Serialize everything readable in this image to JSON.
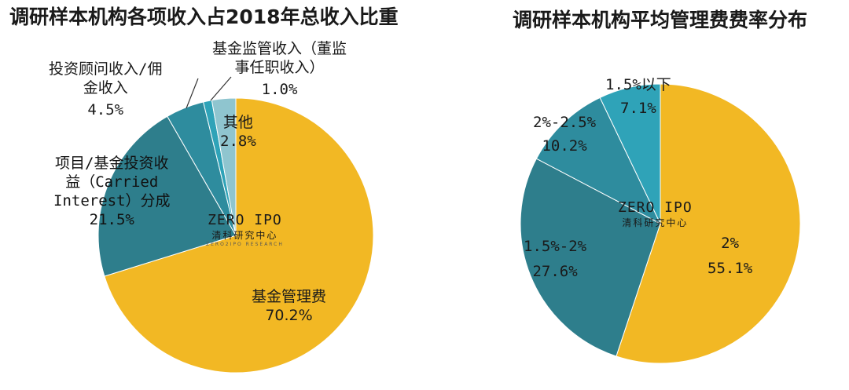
{
  "chart_data": [
    {
      "type": "pie",
      "title": "调研样本机构各项收入占2018年总收入比重",
      "slices": [
        {
          "label": "基金管理费",
          "value": 70.2,
          "display": "70.2%",
          "color": "#f2b824"
        },
        {
          "label": "项目/基金投资收益（Carried Interest）分成",
          "value": 21.5,
          "display": "21.5%",
          "color": "#2e7e8c"
        },
        {
          "label": "投资顾问收入/佣金收入",
          "value": 4.5,
          "display": "4.5%",
          "color": "#2e8c9e"
        },
        {
          "label": "基金监管收入（董监事任职收入）",
          "value": 1.0,
          "display": "1.0%",
          "color": "#2fa3b8"
        },
        {
          "label": "其他",
          "value": 2.8,
          "display": "2.8%",
          "color": "#8fc5cf"
        }
      ]
    },
    {
      "type": "pie",
      "title": "调研样本机构平均管理费费率分布",
      "slices": [
        {
          "label": "2%",
          "value": 55.1,
          "display": "55.1%",
          "color": "#f2b824"
        },
        {
          "label": "1.5%-2%",
          "value": 27.6,
          "display": "27.6%",
          "color": "#2e7e8c"
        },
        {
          "label": "2%-2.5%",
          "value": 10.2,
          "display": "10.2%",
          "color": "#2e8c9e"
        },
        {
          "label": "1.5%以下",
          "value": 7.1,
          "display": "7.1%",
          "color": "#2fa3b8"
        }
      ]
    }
  ],
  "labels_left": {
    "s0_name": "基金管理费",
    "s0_val": "70.2%",
    "s1_name1": "项目/基金投资收",
    "s1_name2": "益（Carried",
    "s1_name3": "Interest）分成",
    "s1_val": "21.5%",
    "s2_name1": "投资顾问收入/佣",
    "s2_name2": "金收入",
    "s2_val": "4.5%",
    "s3_name1": "基金监管收入（董监",
    "s3_name2": "事任职收入）",
    "s3_val": "1.0%",
    "s4_name": "其他",
    "s4_val": "2.8%"
  },
  "labels_right": {
    "s0_name": "2%",
    "s0_val": "55.1%",
    "s1_name": "1.5%-2%",
    "s1_val": "27.6%",
    "s2_name": "2%-2.5%",
    "s2_val": "10.2%",
    "s3_name": "1.5%以下",
    "s3_val": "7.1%"
  },
  "watermark": {
    "brand": "ZERO  IPO",
    "sub": "清科研究中心",
    "en": "ZERO2IPO RESEARCH"
  }
}
